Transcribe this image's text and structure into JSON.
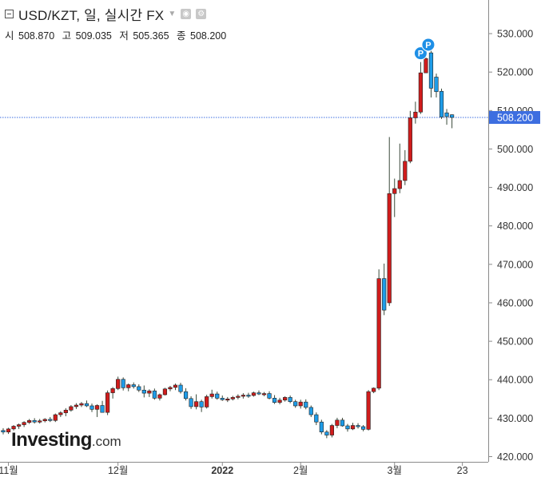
{
  "header": {
    "title": "USD/KZT, 일, 실시간 FX",
    "ohlc": [
      {
        "label": "시",
        "value": "508.870"
      },
      {
        "label": "고",
        "value": "509.035"
      },
      {
        "label": "저",
        "value": "505.365"
      },
      {
        "label": "종",
        "value": "508.200"
      }
    ]
  },
  "logo": {
    "main": "Investing",
    "suffix": ".com"
  },
  "chart_data": {
    "type": "candlestick",
    "y_axis": {
      "min": 420,
      "max": 535,
      "ticks": [
        "420.000",
        "430.000",
        "440.000",
        "450.000",
        "460.000",
        "470.000",
        "480.000",
        "490.000",
        "500.000",
        "510.000",
        "520.000",
        "530.000"
      ]
    },
    "x_axis_labels": [
      {
        "label": "11월",
        "index": 1,
        "bold": false
      },
      {
        "label": "12월",
        "index": 22,
        "bold": false
      },
      {
        "label": "2022",
        "index": 42,
        "bold": true
      },
      {
        "label": "2월",
        "index": 57,
        "bold": false
      },
      {
        "label": "3월",
        "index": 75,
        "bold": false
      },
      {
        "label": "23",
        "index": 88,
        "bold": false
      }
    ],
    "last_price": {
      "value": 508.2,
      "label": "508.200"
    },
    "colors": {
      "up": "#d01c1c",
      "down": "#1e9ce8",
      "last_price": "#3d6ee0",
      "marker": "#1e8fe6"
    },
    "markers": [
      {
        "index": 80,
        "label": "P"
      },
      {
        "index": 81,
        "label": "P"
      }
    ],
    "candles": [
      [
        426.8,
        427.4,
        425.8,
        426.4
      ],
      [
        426.4,
        427.5,
        425.9,
        427.2
      ],
      [
        427.2,
        428.2,
        426.8,
        427.9
      ],
      [
        427.9,
        428.6,
        427.2,
        428.3
      ],
      [
        428.3,
        429.2,
        427.7,
        428.9
      ],
      [
        428.9,
        429.8,
        428.5,
        429.4
      ],
      [
        429.4,
        430.0,
        428.6,
        429.0
      ],
      [
        429.0,
        429.8,
        428.6,
        429.3
      ],
      [
        429.3,
        430.0,
        428.9,
        429.7
      ],
      [
        429.7,
        430.3,
        429.0,
        429.4
      ],
      [
        429.4,
        431.2,
        429.0,
        430.9
      ],
      [
        430.9,
        431.8,
        430.3,
        431.4
      ],
      [
        431.4,
        432.6,
        430.5,
        432.1
      ],
      [
        432.1,
        433.4,
        431.7,
        433.0
      ],
      [
        433.0,
        433.9,
        432.4,
        433.4
      ],
      [
        433.4,
        434.2,
        432.9,
        433.8
      ],
      [
        433.8,
        434.6,
        432.9,
        433.2
      ],
      [
        433.2,
        433.8,
        431.6,
        432.3
      ],
      [
        432.3,
        433.6,
        430.3,
        433.3
      ],
      [
        433.3,
        434.5,
        432.2,
        431.5
      ],
      [
        431.5,
        437.2,
        430.8,
        436.6
      ],
      [
        436.6,
        438.1,
        435.1,
        437.7
      ],
      [
        437.7,
        440.8,
        437.3,
        440.1
      ],
      [
        440.1,
        440.6,
        437.2,
        437.9
      ],
      [
        437.9,
        439.0,
        437.0,
        438.7
      ],
      [
        438.7,
        439.3,
        437.7,
        438.2
      ],
      [
        438.2,
        438.8,
        436.8,
        437.3
      ],
      [
        437.3,
        438.5,
        435.4,
        436.5
      ],
      [
        436.5,
        437.5,
        435.5,
        437.1
      ],
      [
        437.1,
        437.7,
        434.8,
        435.2
      ],
      [
        435.2,
        436.4,
        434.6,
        436.1
      ],
      [
        436.1,
        437.9,
        435.9,
        437.6
      ],
      [
        437.6,
        438.4,
        437.0,
        438.0
      ],
      [
        438.0,
        439.0,
        437.3,
        438.6
      ],
      [
        438.6,
        439.2,
        436.4,
        436.9
      ],
      [
        436.9,
        437.8,
        434.6,
        435.1
      ],
      [
        435.1,
        435.7,
        432.4,
        433.0
      ],
      [
        433.0,
        436.2,
        432.3,
        434.3
      ],
      [
        434.3,
        434.8,
        431.6,
        432.9
      ],
      [
        432.9,
        436.1,
        432.5,
        435.6
      ],
      [
        435.6,
        437.4,
        435.1,
        436.3
      ],
      [
        436.3,
        436.9,
        434.8,
        435.2
      ],
      [
        435.2,
        435.9,
        434.5,
        434.8
      ],
      [
        434.8,
        435.5,
        434.2,
        435.0
      ],
      [
        435.0,
        435.8,
        434.6,
        435.4
      ],
      [
        435.4,
        436.2,
        434.9,
        435.7
      ],
      [
        435.7,
        436.5,
        435.1,
        436.0
      ],
      [
        436.0,
        436.6,
        435.3,
        435.9
      ],
      [
        435.9,
        436.9,
        435.6,
        436.6
      ],
      [
        436.6,
        437.2,
        436.0,
        436.3
      ],
      [
        436.3,
        436.8,
        435.7,
        436.4
      ],
      [
        436.4,
        437.0,
        434.9,
        435.2
      ],
      [
        435.2,
        436.0,
        433.7,
        434.1
      ],
      [
        434.1,
        435.3,
        433.6,
        434.7
      ],
      [
        434.7,
        435.7,
        434.3,
        435.4
      ],
      [
        435.4,
        435.9,
        433.9,
        434.3
      ],
      [
        434.3,
        434.8,
        432.7,
        433.2
      ],
      [
        433.2,
        434.8,
        432.5,
        434.2
      ],
      [
        434.2,
        434.9,
        432.3,
        432.8
      ],
      [
        432.8,
        433.3,
        430.3,
        430.9
      ],
      [
        430.9,
        431.5,
        428.2,
        429.0
      ],
      [
        429.0,
        429.6,
        425.8,
        426.4
      ],
      [
        426.4,
        426.9,
        424.8,
        425.6
      ],
      [
        425.6,
        428.5,
        425.0,
        428.1
      ],
      [
        428.1,
        430.1,
        427.4,
        429.5
      ],
      [
        429.5,
        430.1,
        427.8,
        428.0
      ],
      [
        428.0,
        428.5,
        426.5,
        427.2
      ],
      [
        427.2,
        428.8,
        426.9,
        428.1
      ],
      [
        428.1,
        428.7,
        427.3,
        427.8
      ],
      [
        427.8,
        428.2,
        426.6,
        427.1
      ],
      [
        427.1,
        437.3,
        426.8,
        436.9
      ],
      [
        436.9,
        438.0,
        436.5,
        437.8
      ],
      [
        437.8,
        468.7,
        437.3,
        466.3
      ],
      [
        466.3,
        470.2,
        456.8,
        458.1
      ],
      [
        460.0,
        503.1,
        459.2,
        488.4
      ],
      [
        488.4,
        492.3,
        482.3,
        489.7
      ],
      [
        489.7,
        501.4,
        488.5,
        491.8
      ],
      [
        491.8,
        499.7,
        490.6,
        496.8
      ],
      [
        496.8,
        509.9,
        496.3,
        508.1
      ],
      [
        508.1,
        512.3,
        506.6,
        509.6
      ],
      [
        509.6,
        522.6,
        509.1,
        519.8
      ],
      [
        519.8,
        526.7,
        520.0,
        523.5
      ],
      [
        525.0,
        525.6,
        513.4,
        515.8
      ],
      [
        518.7,
        519.6,
        513.4,
        514.9
      ],
      [
        515.0,
        515.7,
        507.8,
        508.3
      ],
      [
        509.4,
        510.4,
        506.3,
        508.4
      ],
      [
        508.9,
        509.0,
        505.4,
        508.2
      ]
    ]
  }
}
